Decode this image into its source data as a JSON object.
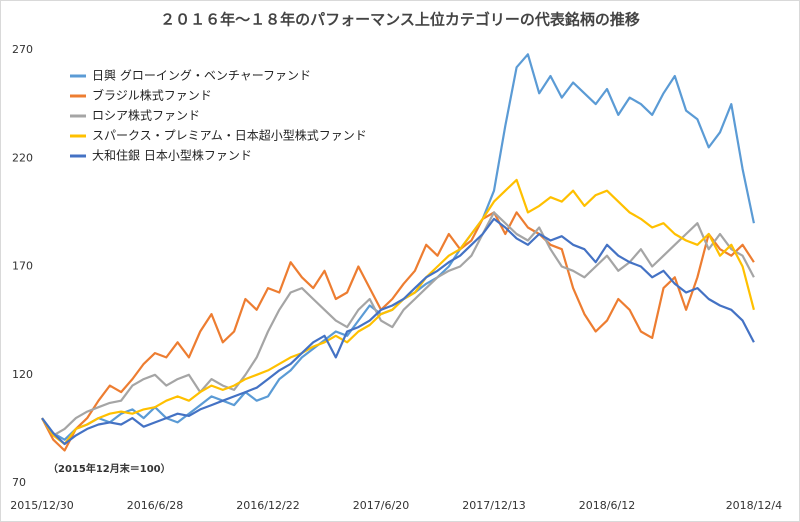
{
  "chart_data": {
    "type": "line",
    "title": "２０１６年～１８年のパフォーマンス上位カテゴリーの代表銘柄の推移",
    "annotation": "（2015年12月末＝100）",
    "categories": [
      "2015/12/30",
      null,
      null,
      null,
      null,
      null,
      null,
      null,
      null,
      null,
      "2016/6/28",
      null,
      null,
      null,
      null,
      null,
      null,
      null,
      null,
      null,
      "2016/12/22",
      null,
      null,
      null,
      null,
      null,
      null,
      null,
      null,
      null,
      "2017/6/20",
      null,
      null,
      null,
      null,
      null,
      null,
      null,
      null,
      null,
      "2017/12/13",
      null,
      null,
      null,
      null,
      null,
      null,
      null,
      null,
      null,
      "2018/6/12",
      null,
      null,
      null,
      null,
      null,
      null,
      null,
      null,
      null,
      null,
      null,
      null,
      "2018/12/4"
    ],
    "ylim": [
      70,
      270
    ],
    "yticks": [
      70,
      120,
      170,
      220,
      270
    ],
    "grid": false,
    "legend": "upper left",
    "series": [
      {
        "name": "日興 グローイング・ベンチャーファンド",
        "color": "#5b9bd5",
        "values": [
          100,
          93,
          90,
          95,
          97,
          100,
          98,
          102,
          104,
          100,
          105,
          100,
          98,
          102,
          106,
          110,
          108,
          106,
          112,
          108,
          110,
          118,
          122,
          128,
          132,
          136,
          140,
          138,
          145,
          152,
          148,
          150,
          155,
          158,
          162,
          165,
          170,
          178,
          185,
          192,
          205,
          235,
          262,
          268,
          250,
          258,
          248,
          255,
          250,
          245,
          252,
          240,
          248,
          245,
          240,
          250,
          258,
          242,
          238,
          225,
          232,
          245,
          215,
          190
        ]
      },
      {
        "name": "ブラジル株式ファンド",
        "color": "#ed7d31",
        "values": [
          100,
          90,
          85,
          95,
          100,
          108,
          115,
          112,
          118,
          125,
          130,
          128,
          135,
          128,
          140,
          148,
          135,
          140,
          155,
          150,
          160,
          158,
          172,
          165,
          160,
          168,
          155,
          158,
          170,
          160,
          150,
          155,
          162,
          168,
          180,
          175,
          185,
          178,
          182,
          192,
          195,
          185,
          195,
          188,
          185,
          180,
          178,
          160,
          148,
          140,
          145,
          155,
          150,
          140,
          137,
          160,
          165,
          150,
          165,
          185,
          178,
          175,
          180,
          172
        ]
      },
      {
        "name": "ロシア株式ファンド",
        "color": "#a5a5a5",
        "values": [
          100,
          92,
          95,
          100,
          103,
          105,
          107,
          108,
          115,
          118,
          120,
          115,
          118,
          120,
          112,
          118,
          115,
          113,
          120,
          128,
          140,
          150,
          158,
          160,
          155,
          150,
          145,
          142,
          150,
          155,
          145,
          142,
          150,
          155,
          160,
          165,
          168,
          170,
          175,
          185,
          195,
          190,
          185,
          182,
          188,
          178,
          170,
          168,
          165,
          170,
          175,
          168,
          172,
          178,
          170,
          175,
          180,
          185,
          190,
          178,
          185,
          178,
          175,
          165
        ]
      },
      {
        "name": "スパークス・プレミアム・日本超小型株式ファンド",
        "color": "#ffc000",
        "values": [
          100,
          92,
          88,
          95,
          97,
          100,
          102,
          103,
          102,
          104,
          105,
          108,
          110,
          108,
          112,
          115,
          113,
          115,
          118,
          120,
          122,
          125,
          128,
          130,
          133,
          135,
          138,
          135,
          140,
          143,
          148,
          150,
          155,
          158,
          165,
          170,
          175,
          178,
          185,
          192,
          200,
          205,
          210,
          195,
          198,
          202,
          200,
          205,
          198,
          203,
          205,
          200,
          195,
          192,
          188,
          190,
          185,
          182,
          180,
          185,
          175,
          180,
          170,
          150
        ]
      },
      {
        "name": "大和住銀 日本小型株ファンド",
        "color": "#4472c4",
        "values": [
          100,
          93,
          88,
          92,
          95,
          97,
          98,
          97,
          100,
          96,
          98,
          100,
          102,
          101,
          104,
          106,
          108,
          110,
          112,
          114,
          118,
          122,
          125,
          130,
          135,
          138,
          128,
          140,
          142,
          145,
          150,
          152,
          155,
          160,
          165,
          168,
          172,
          175,
          180,
          185,
          192,
          188,
          183,
          180,
          185,
          182,
          184,
          180,
          178,
          172,
          180,
          175,
          172,
          170,
          165,
          168,
          162,
          158,
          160,
          155,
          152,
          150,
          145,
          135
        ]
      }
    ]
  }
}
